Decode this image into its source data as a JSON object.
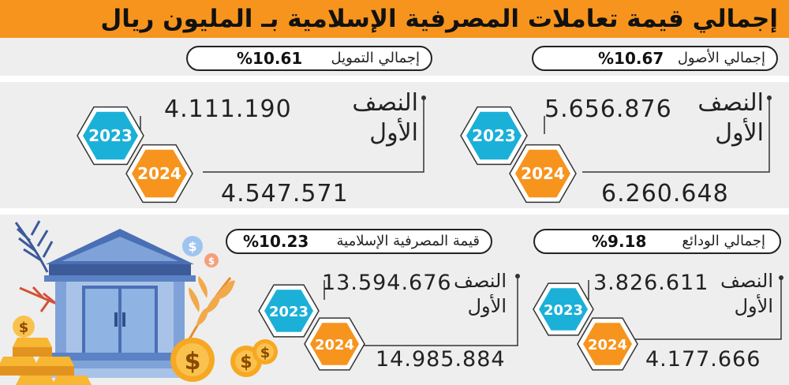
{
  "title": "إجمالي قيمة تعاملات المصرفية الإسلامية بـ المليون ريال",
  "colors": {
    "orange": "#f7941d",
    "blue": "#1bb0d8",
    "background": "#eeeeee"
  },
  "chart_data": {
    "type": "table",
    "title": "إجمالي قيمة تعاملات المصرفية الإسلامية بـ المليون ريال",
    "period": "النصف الأول",
    "columns": [
      "2023",
      "2024"
    ],
    "rows": [
      {
        "label": "إجمالي الأصول",
        "growth": "10.67%",
        "values": [
          "5.656.876",
          "6.260.648"
        ]
      },
      {
        "label": "إجمالي التمويل",
        "growth": "10.61%",
        "values": [
          "4.111.190",
          "4.547.571"
        ]
      },
      {
        "label": "إجمالي الودائع",
        "growth": "9.18%",
        "values": [
          "3.826.611",
          "4.177.666"
        ]
      },
      {
        "label": "قيمة المصرفية الإسلامية",
        "growth": "10.23%",
        "values": [
          "13.594.676",
          "14.985.884"
        ]
      }
    ]
  },
  "period_label": "النصف\nالأول",
  "years": {
    "y2023": "2023",
    "y2024": "2024"
  },
  "currency_symbol": "$",
  "panels": {
    "assets": {
      "label": "إجمالي الأصول",
      "growth": "%10.67",
      "v2023": "5.656.876",
      "v2024": "6.260.648"
    },
    "financing": {
      "label": "إجمالي التمويل",
      "growth": "%10.61",
      "v2023": "4.111.190",
      "v2024": "4.547.571"
    },
    "deposits": {
      "label": "إجمالي الودائع",
      "growth": "%9.18",
      "v2023": "3.826.611",
      "v2024": "4.177.666"
    },
    "islamic": {
      "label": "قيمة المصرفية الإسلامية",
      "growth": "%10.23",
      "v2023": "13.594.676",
      "v2024": "14.985.884"
    }
  }
}
